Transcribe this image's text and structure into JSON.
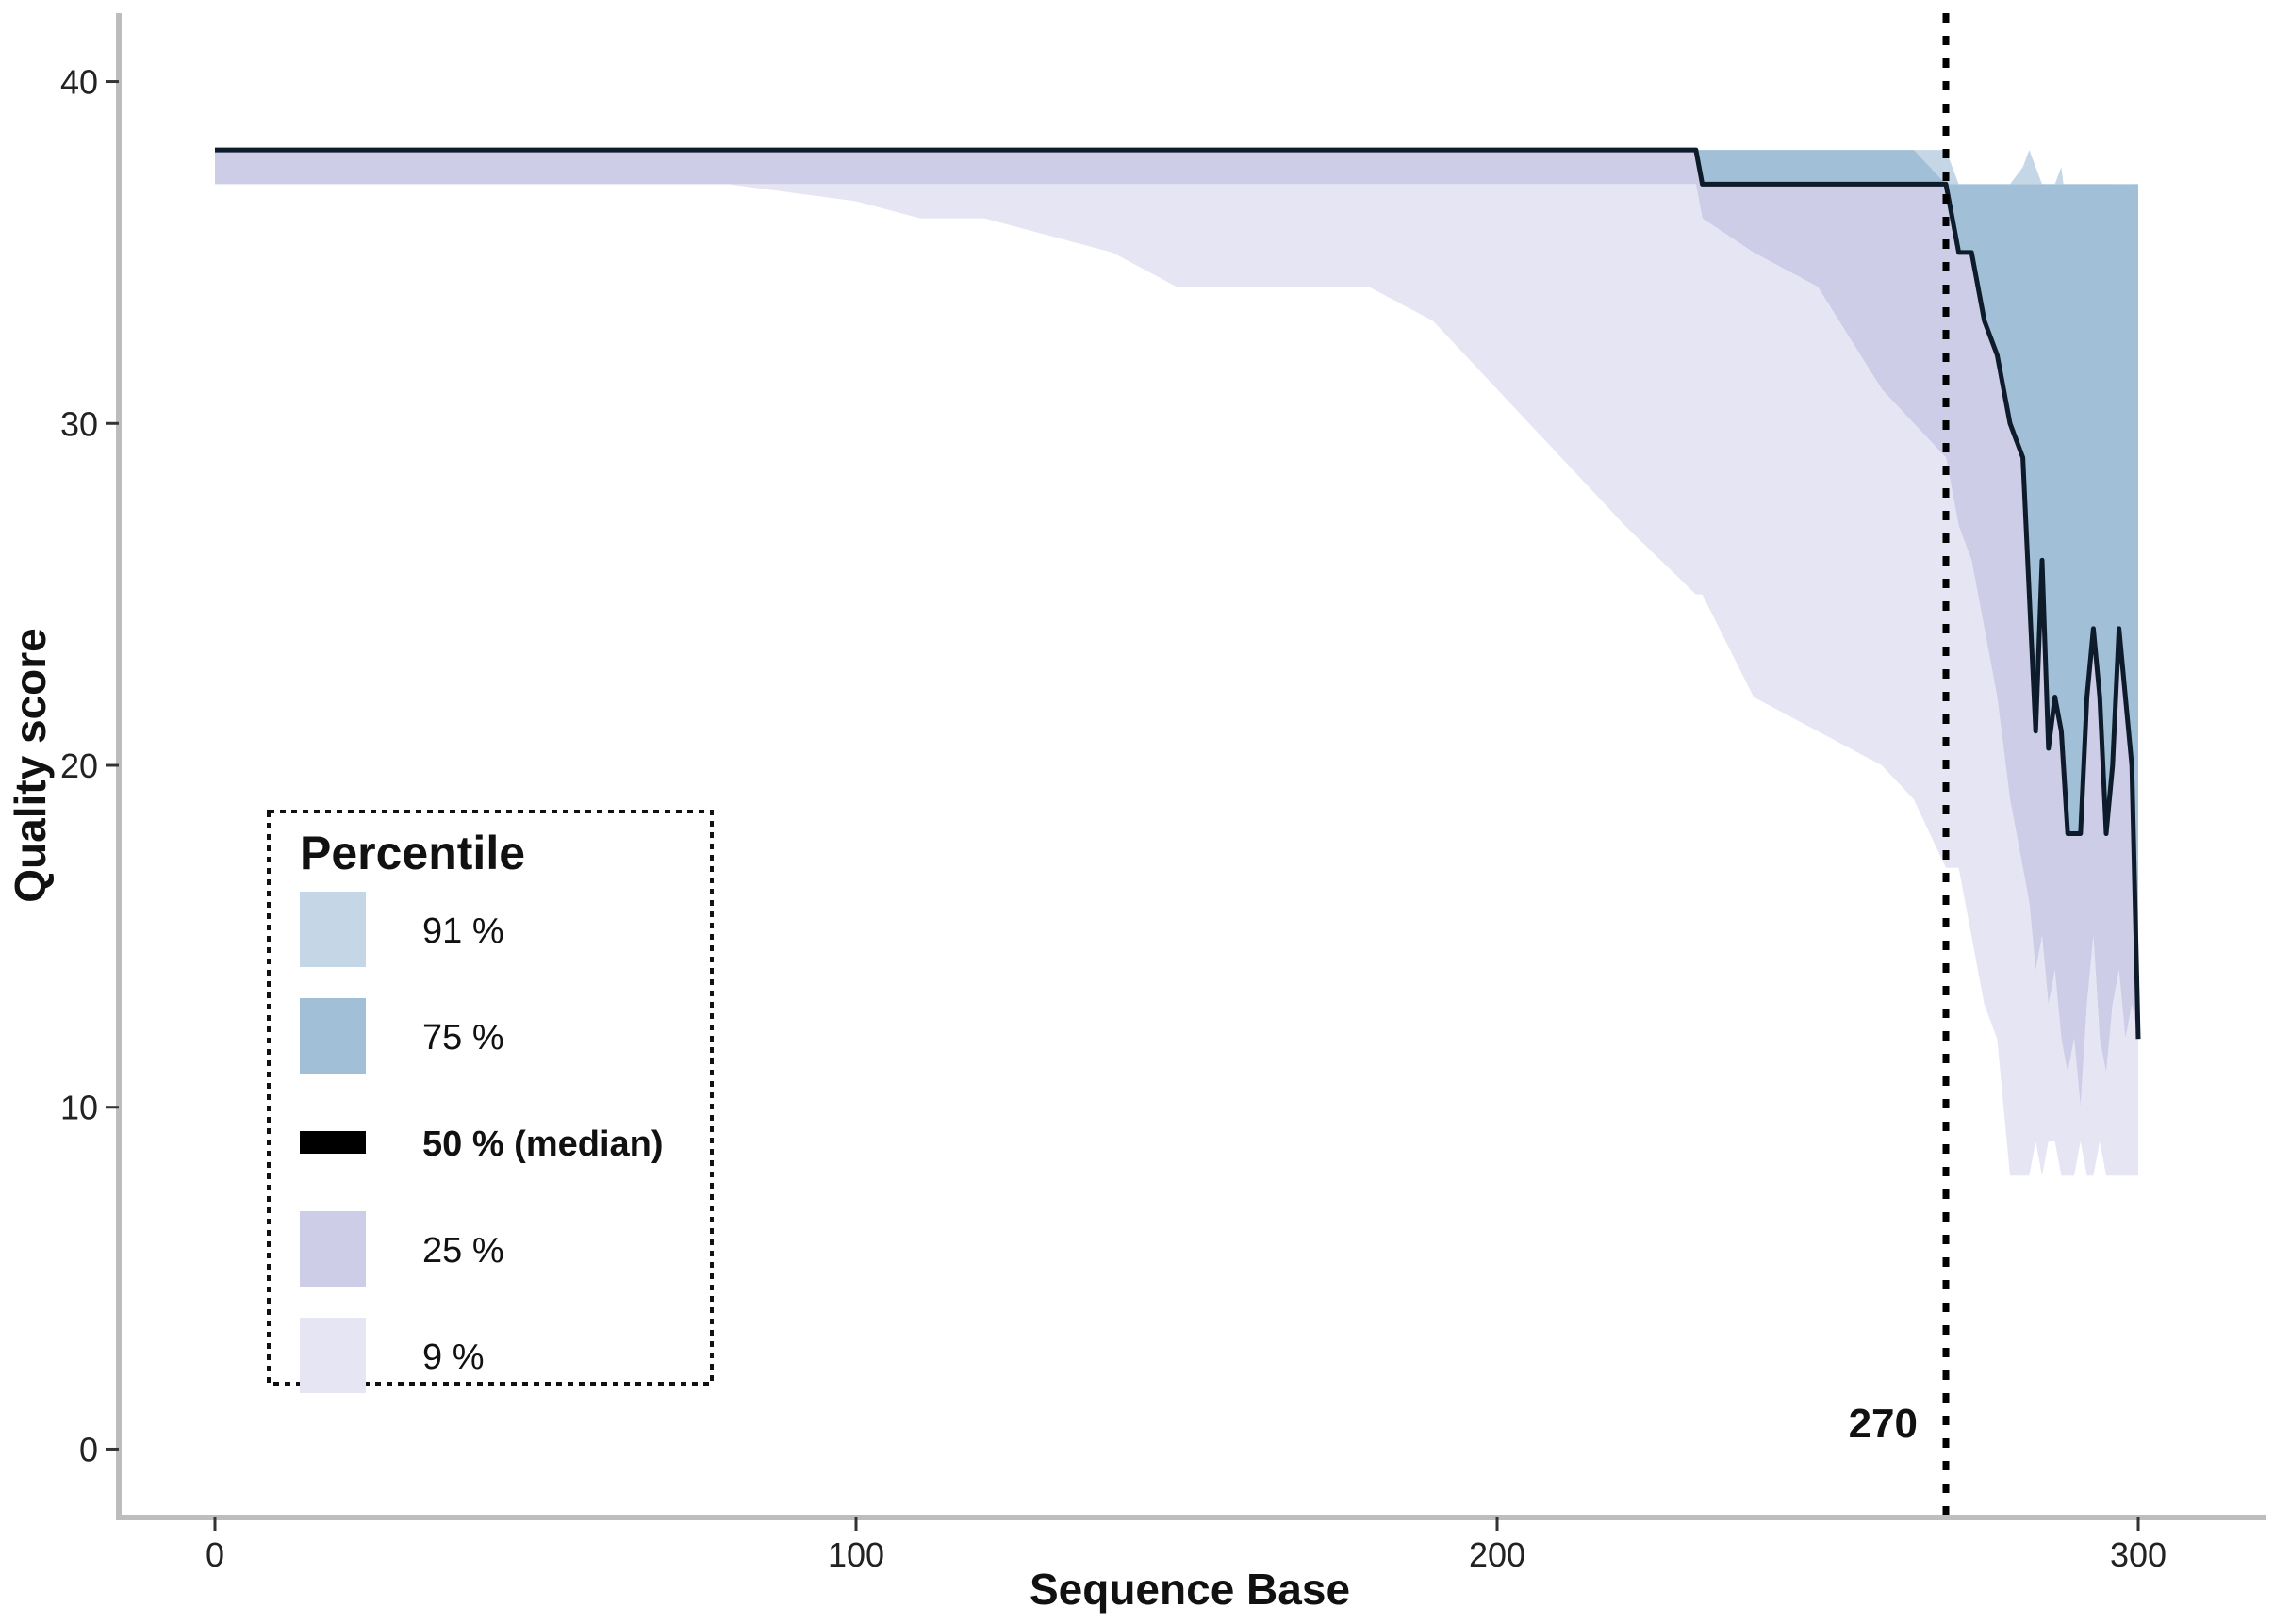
{
  "chart_data": {
    "type": "area",
    "xlabel": "Sequence Base",
    "ylabel": "Quality score",
    "xlim": [
      -15,
      320
    ],
    "ylim": [
      -2,
      42
    ],
    "xticks": [
      0,
      100,
      200,
      300
    ],
    "yticks": [
      0,
      10,
      20,
      30,
      40
    ],
    "grid": false,
    "cutoff": {
      "x": 270,
      "label": "270"
    },
    "legend": {
      "title": "Percentile",
      "placement": "bottom-left",
      "entries": [
        {
          "label": "91 %",
          "color": "#c5d7e6",
          "kind": "band"
        },
        {
          "label": "75 %",
          "color": "#a1bfd6",
          "kind": "band"
        },
        {
          "label": "50 % (median)",
          "color": "#000000",
          "kind": "line"
        },
        {
          "label": "25 %",
          "color": "#cecde8",
          "kind": "band"
        },
        {
          "label": "9 %",
          "color": "#e6e5f3",
          "kind": "band"
        }
      ]
    },
    "x": [
      0,
      10,
      20,
      40,
      60,
      80,
      100,
      110,
      120,
      130,
      140,
      150,
      160,
      170,
      180,
      190,
      200,
      210,
      220,
      231,
      232,
      240,
      250,
      260,
      265,
      270,
      272,
      274,
      276,
      278,
      280,
      282,
      283,
      284,
      285,
      286,
      287,
      288,
      289,
      290,
      291,
      292,
      293,
      294,
      295,
      296,
      297,
      298,
      299,
      300
    ],
    "series": [
      {
        "name": "91 %",
        "values": [
          38,
          38,
          38,
          38,
          38,
          38,
          38,
          38,
          38,
          38,
          38,
          38,
          38,
          38,
          38,
          38,
          38,
          38,
          38,
          38,
          38,
          38,
          38,
          38,
          38,
          38,
          37,
          37,
          37,
          37,
          37,
          37.5,
          38,
          37.5,
          37,
          36,
          37,
          37.5,
          36,
          37,
          36,
          37,
          35,
          37,
          36,
          37,
          37,
          37,
          37,
          33
        ]
      },
      {
        "name": "75 %",
        "values": [
          38,
          38,
          38,
          38,
          38,
          38,
          38,
          38,
          38,
          38,
          38,
          38,
          38,
          38,
          38,
          38,
          38,
          38,
          38,
          38,
          38,
          38,
          38,
          38,
          38,
          37,
          37,
          37,
          37,
          37,
          37,
          37,
          37,
          37,
          37,
          37,
          37,
          37,
          37,
          37,
          37,
          37,
          37,
          37,
          37,
          37,
          37,
          37,
          37,
          37
        ]
      },
      {
        "name": "50 % (median)",
        "values": [
          38,
          38,
          38,
          38,
          38,
          38,
          38,
          38,
          38,
          38,
          38,
          38,
          38,
          38,
          38,
          38,
          38,
          38,
          38,
          38,
          37,
          37,
          37,
          37,
          37,
          37,
          35,
          35,
          33,
          32,
          30,
          29,
          25,
          21,
          26,
          20.5,
          22,
          21,
          18,
          18,
          18,
          22,
          24,
          22,
          18,
          20,
          24,
          22,
          20,
          12
        ]
      },
      {
        "name": "25 %",
        "values": [
          37,
          37,
          37,
          37,
          37,
          37,
          37,
          37,
          37,
          37,
          37,
          37,
          37,
          37,
          37,
          37,
          37,
          37,
          37,
          37,
          36,
          35,
          34,
          31,
          30,
          29,
          27,
          26,
          24,
          22,
          19,
          17,
          16,
          14,
          15,
          13,
          14,
          12,
          11,
          12,
          10,
          13,
          15,
          12,
          11,
          13,
          14,
          12,
          13,
          12
        ]
      },
      {
        "name": "9 %",
        "values": [
          37,
          37,
          37,
          37,
          37,
          37,
          36.5,
          36,
          36,
          35.5,
          35,
          34,
          34,
          34,
          34,
          33,
          31,
          29,
          27,
          25,
          25,
          22,
          21,
          20,
          19,
          17,
          17,
          15,
          13,
          12,
          8,
          8,
          8,
          9,
          8,
          9,
          9,
          8,
          8,
          8,
          9,
          8,
          8,
          9,
          8,
          8,
          8,
          8,
          8,
          8
        ]
      }
    ]
  }
}
